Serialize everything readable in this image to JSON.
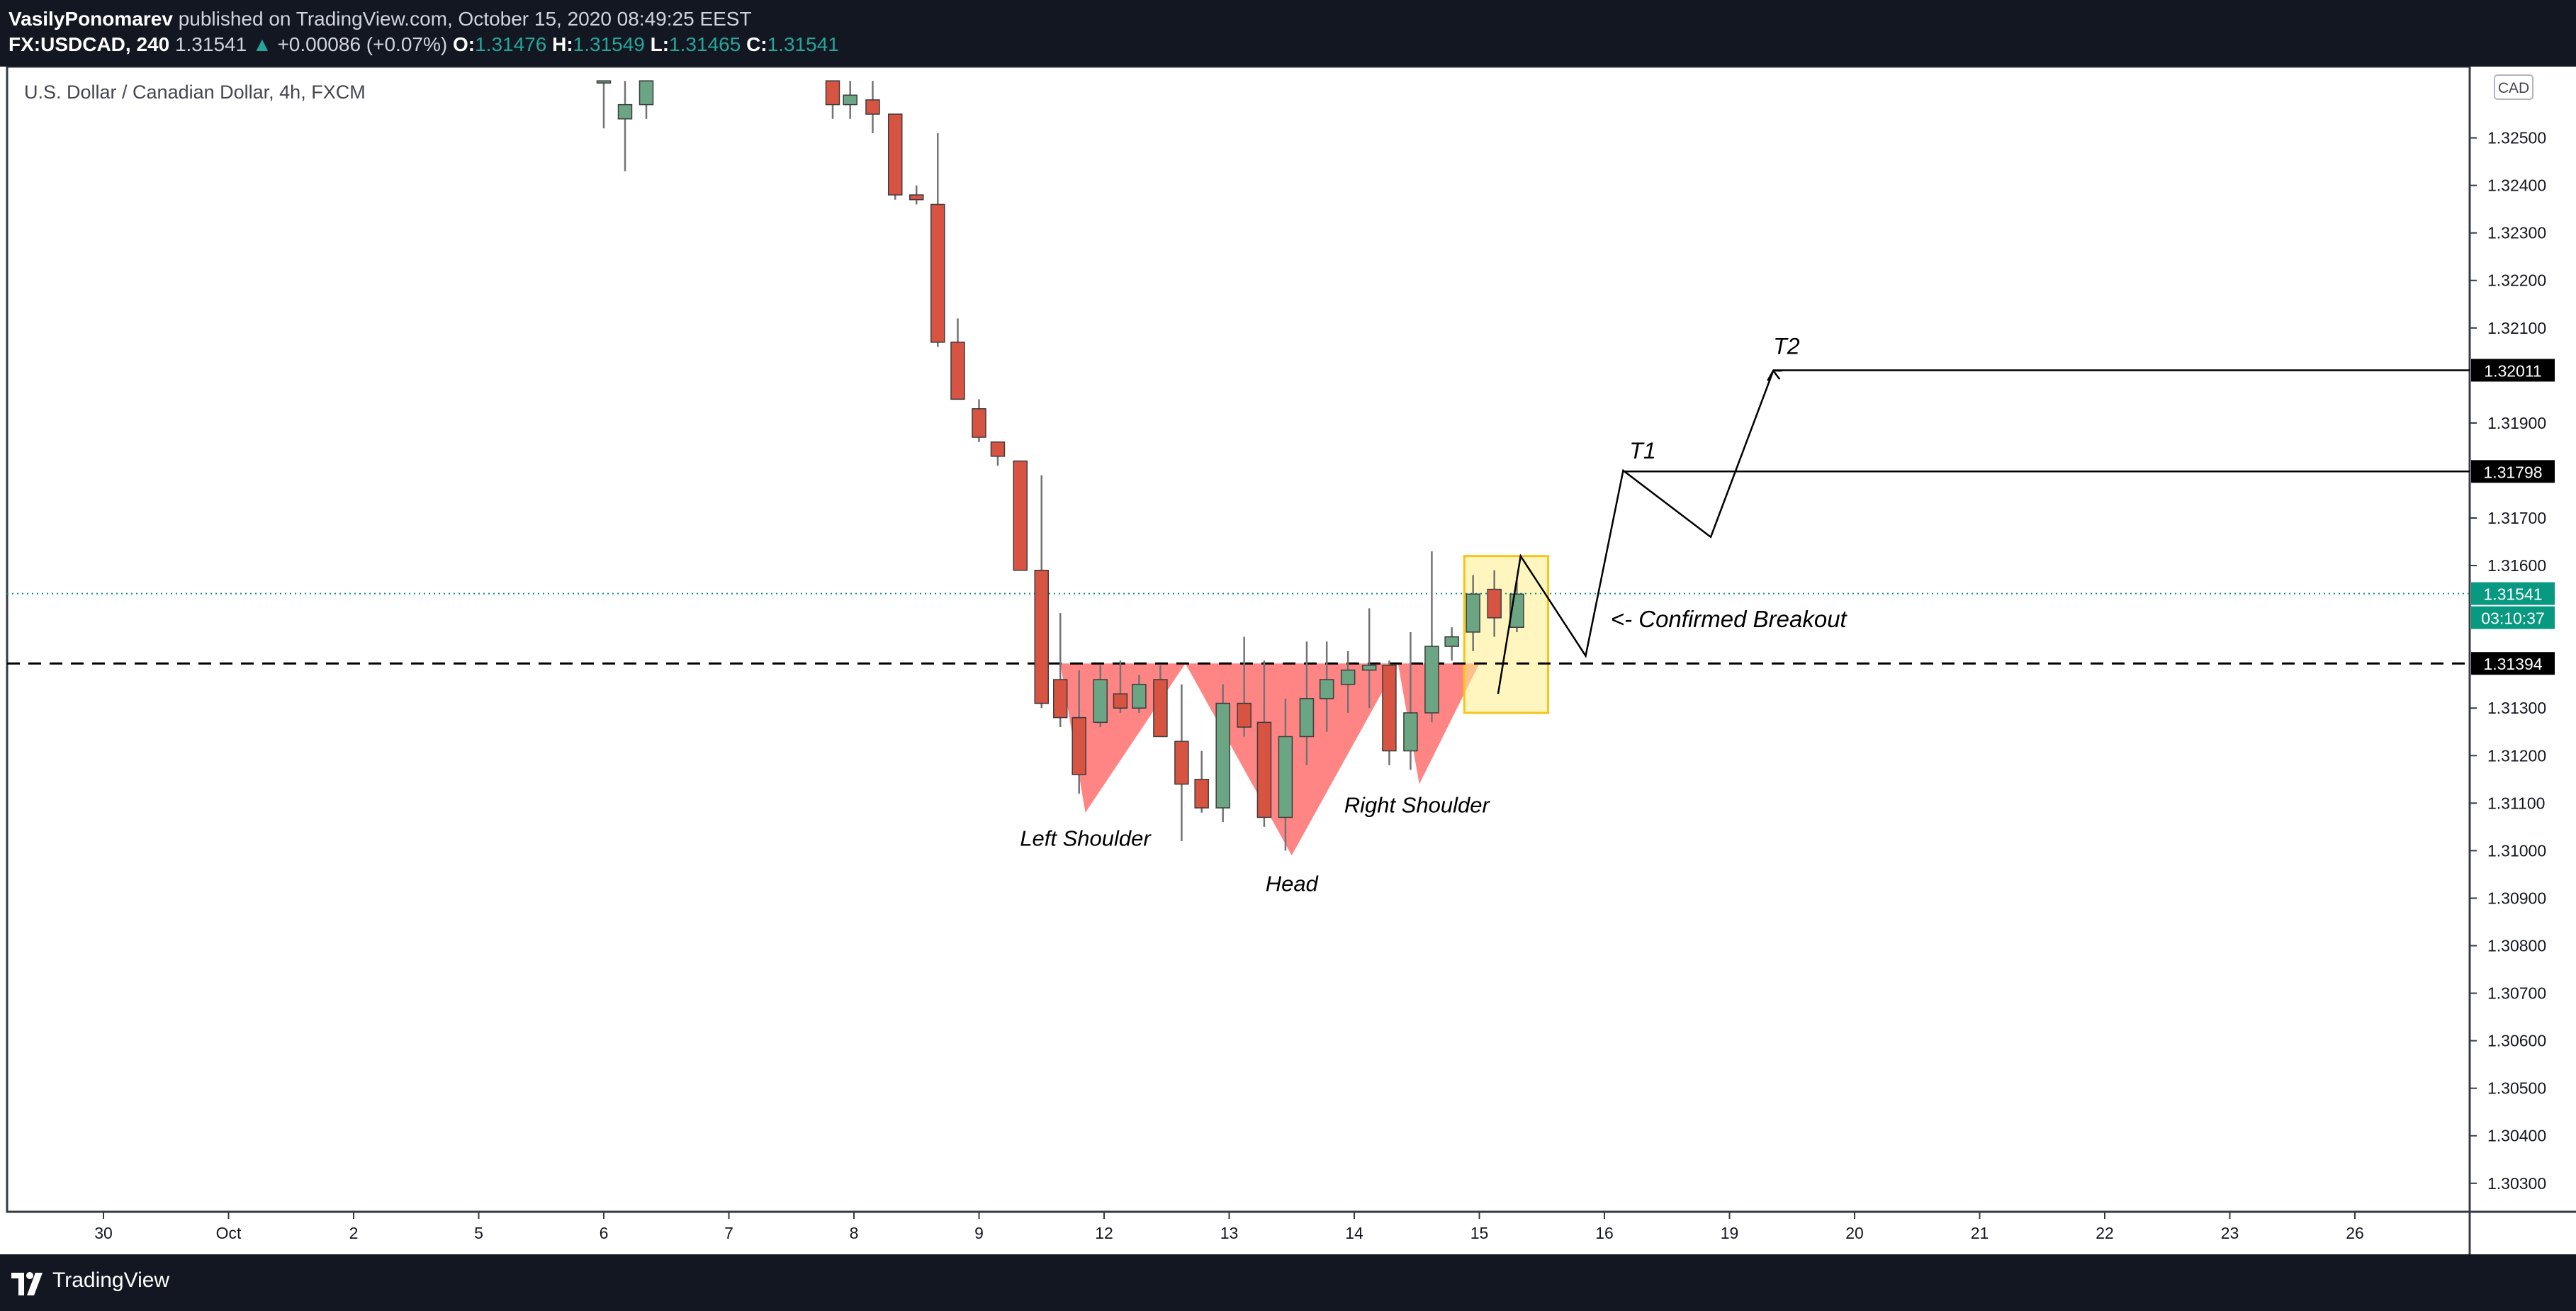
{
  "header": {
    "author": "VasilyPonomarev",
    "published": "published on TradingView.com, October 15, 2020 08:49:25 EEST",
    "symbol": "FX:USDCAD, 240",
    "last": "1.31541",
    "change": "+0.00086 (+0.07%)",
    "o_label": "O:",
    "o_value": "1.31476",
    "h_label": "H:",
    "h_value": "1.31549",
    "l_label": "L:",
    "l_value": "1.31465",
    "c_label": "C:",
    "c_value": "1.31541"
  },
  "footer": {
    "brand": "TradingView"
  },
  "chart_data": {
    "type": "candlestick",
    "title": "U.S. Dollar / Canadian Dollar, 4h, FXCM",
    "currency": "CAD",
    "ylim": [
      1.3024,
      1.3265
    ],
    "y_ticks": [
      "1.32500",
      "1.32400",
      "1.32300",
      "1.32200",
      "1.32100",
      "1.31900",
      "1.31700",
      "1.31600",
      "1.31300",
      "1.31200",
      "1.31100",
      "1.31000",
      "1.30900",
      "1.30800",
      "1.30700",
      "1.30600",
      "1.30500",
      "1.30400",
      "1.30300"
    ],
    "x_ticks": [
      {
        "label": "30",
        "x": -6
      },
      {
        "label": "Oct",
        "x": -5
      },
      {
        "label": "2",
        "x": -4
      },
      {
        "label": "5",
        "x": -3
      },
      {
        "label": "6",
        "x": -2
      },
      {
        "label": "7",
        "x": -1
      },
      {
        "label": "8",
        "x": 0
      },
      {
        "label": "9",
        "x": 1
      },
      {
        "label": "12",
        "x": 2
      },
      {
        "label": "13",
        "x": 3
      },
      {
        "label": "14",
        "x": 4
      },
      {
        "label": "15",
        "x": 5
      },
      {
        "label": "16",
        "x": 6
      },
      {
        "label": "19",
        "x": 7
      },
      {
        "label": "20",
        "x": 8
      },
      {
        "label": "21",
        "x": 9
      },
      {
        "label": "22",
        "x": 10
      },
      {
        "label": "23",
        "x": 11
      },
      {
        "label": "26",
        "x": 12
      }
    ],
    "candles": [
      [
        -2.0,
        1.3262,
        1.3262,
        1.3252,
        1.3262
      ],
      [
        -1.83,
        1.3254,
        1.3262,
        1.3243,
        1.3257
      ],
      [
        -1.66,
        1.3257,
        1.3262,
        1.3254,
        1.3262
      ],
      [
        -0.17,
        1.3262,
        1.3262,
        1.3254,
        1.3257
      ],
      [
        -0.03,
        1.3257,
        1.3262,
        1.3254,
        1.3259
      ],
      [
        0.15,
        1.3258,
        1.3262,
        1.3251,
        1.3255
      ],
      [
        0.33,
        1.3255,
        1.3255,
        1.3237,
        1.3238
      ],
      [
        0.5,
        1.3238,
        1.324,
        1.3236,
        1.3237
      ],
      [
        0.67,
        1.3236,
        1.3251,
        1.3206,
        1.3207
      ],
      [
        0.83,
        1.3207,
        1.3212,
        1.3195,
        1.3195
      ],
      [
        1.0,
        1.3193,
        1.3195,
        1.3186,
        1.3187
      ],
      [
        1.15,
        1.3186,
        1.3186,
        1.3181,
        1.3183
      ],
      [
        1.33,
        1.3182,
        1.3182,
        1.3159,
        1.3159
      ],
      [
        1.5,
        1.3159,
        1.3179,
        1.313,
        1.3131
      ],
      [
        1.65,
        1.3136,
        1.315,
        1.3126,
        1.3128
      ],
      [
        1.8,
        1.3128,
        1.3138,
        1.3112,
        1.3116
      ],
      [
        1.97,
        1.3127,
        1.3139,
        1.3126,
        1.3136
      ],
      [
        2.13,
        1.3133,
        1.314,
        1.3129,
        1.313
      ],
      [
        2.28,
        1.313,
        1.3137,
        1.3129,
        1.3135
      ],
      [
        2.45,
        1.3136,
        1.3139,
        1.3124,
        1.3124
      ],
      [
        2.62,
        1.3123,
        1.3135,
        1.3102,
        1.3114
      ],
      [
        2.78,
        1.3115,
        1.3121,
        1.3108,
        1.3109
      ],
      [
        2.95,
        1.3109,
        1.3135,
        1.3106,
        1.3131
      ],
      [
        3.12,
        1.3131,
        1.3145,
        1.3124,
        1.3126
      ],
      [
        3.28,
        1.3127,
        1.314,
        1.3105,
        1.3107
      ],
      [
        3.45,
        1.3107,
        1.3132,
        1.31,
        1.3124
      ],
      [
        3.62,
        1.3124,
        1.3144,
        1.3118,
        1.3132
      ],
      [
        3.78,
        1.3132,
        1.3144,
        1.3125,
        1.3136
      ],
      [
        3.95,
        1.3135,
        1.3142,
        1.3129,
        1.3138
      ],
      [
        4.12,
        1.3138,
        1.3151,
        1.313,
        1.3139
      ],
      [
        4.28,
        1.3139,
        1.314,
        1.3118,
        1.3121
      ],
      [
        4.45,
        1.3121,
        1.3146,
        1.3117,
        1.3129
      ],
      [
        4.62,
        1.3129,
        1.3163,
        1.3127,
        1.3143
      ],
      [
        4.78,
        1.3143,
        1.3147,
        1.314,
        1.3145
      ],
      [
        4.95,
        1.3146,
        1.3158,
        1.3142,
        1.3154
      ],
      [
        5.12,
        1.3155,
        1.3159,
        1.3145,
        1.3149
      ],
      [
        5.3,
        1.3147,
        1.3157,
        1.3146,
        1.3154
      ]
    ],
    "horizontal_levels": [
      {
        "name": "T2",
        "value": 1.32011,
        "label": "1.32011"
      },
      {
        "name": "T1",
        "value": 1.31798,
        "label": "1.31798"
      },
      {
        "name": "neckline",
        "value": 1.31394,
        "label": "1.31394"
      }
    ],
    "current_price": {
      "value": 1.31541,
      "label": "1.31541",
      "countdown": "03:10:37"
    },
    "annotations": [
      {
        "text": "Left Shoulder",
        "x": 1.85,
        "y": 1.3101
      },
      {
        "text": "Head",
        "x": 3.5,
        "y": 1.30915
      },
      {
        "text": "Right Shoulder",
        "x": 4.5,
        "y": 1.3108
      },
      {
        "text": "<- Confirmed Breakout",
        "x": 6.05,
        "y": 1.3147
      },
      {
        "text": "T1",
        "x": 6.2,
        "y": 1.31825
      },
      {
        "text": "T2",
        "x": 7.35,
        "y": 1.32045
      }
    ],
    "projection_path": [
      [
        5.15,
        1.3133
      ],
      [
        5.33,
        1.3162
      ],
      [
        5.85,
        1.3141
      ],
      [
        6.15,
        1.318
      ],
      [
        6.85,
        1.3166
      ],
      [
        7.35,
        1.3201
      ],
      [
        7.42,
        1.3201
      ]
    ],
    "colors": {
      "up": "#6ba583",
      "down": "#d75442",
      "wick": "#737375",
      "pattern": "#ff7070",
      "highlight": "#ffee8a",
      "highlight_border": "#f5c518",
      "price_tag": "#089981",
      "level_tag": "#000000"
    }
  }
}
